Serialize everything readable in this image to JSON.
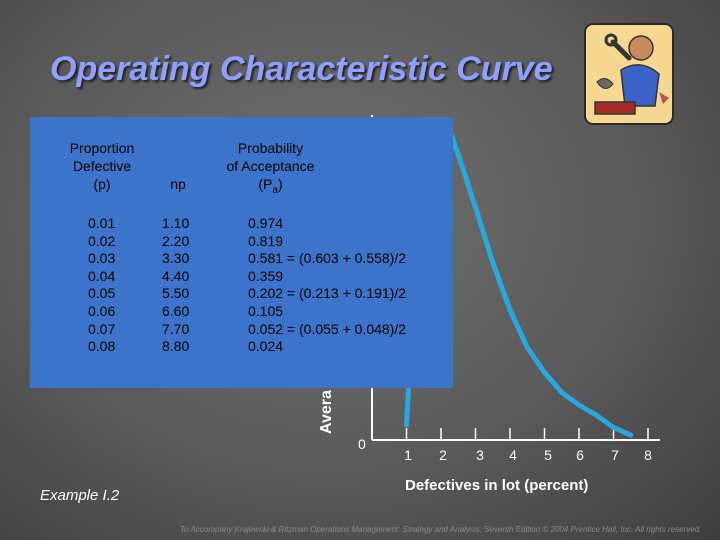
{
  "title": "Operating Characteristic Curve",
  "table": {
    "headers": {
      "p_line1": "Proportion",
      "p_line2": "Defective",
      "p_line3": "(p)",
      "np": "np",
      "pa_line1": "Probability",
      "pa_line2": "of Acceptance",
      "pa_line3_main": "(P",
      "pa_line3_sub": "a",
      "pa_line3_end": ")"
    },
    "rows": [
      {
        "p": "0.01",
        "np": "1.10",
        "pa": "0.974"
      },
      {
        "p": "0.02",
        "np": "2.20",
        "pa": "0.819"
      },
      {
        "p": "0.03",
        "np": "3.30",
        "pa": "0.581 = (0.603 + 0.558)/2"
      },
      {
        "p": "0.04",
        "np": "4.40",
        "pa": "0.359"
      },
      {
        "p": "0.05",
        "np": "5.50",
        "pa": "0.202 = (0.213 + 0.191)/2"
      },
      {
        "p": "0.06",
        "np": "6.60",
        "pa": "0.105"
      },
      {
        "p": "0.07",
        "np": "7.70",
        "pa": "0.052 = (0.055 + 0.048)/2"
      },
      {
        "p": "0.08",
        "np": "8.80",
        "pa": "0.024"
      }
    ]
  },
  "chart_data": {
    "type": "line",
    "ylabel": "Avera",
    "xlabel": "Defectives in lot (percent)",
    "x_ticks": [
      "0",
      "1",
      "2",
      "3",
      "4",
      "5",
      "6",
      "7",
      "8"
    ],
    "series": [
      {
        "x": [
          1.0,
          1.2,
          1.5,
          1.8,
          2.0,
          2.3,
          2.6,
          3.0,
          3.5,
          4.0,
          4.5,
          5.0,
          5.5,
          6.0,
          6.5,
          7.0,
          7.5
        ],
        "y": [
          0.06,
          0.55,
          1.02,
          1.22,
          1.26,
          1.22,
          1.1,
          0.93,
          0.71,
          0.52,
          0.37,
          0.27,
          0.19,
          0.14,
          0.1,
          0.05,
          0.02
        ]
      }
    ],
    "color": "#29a8e0"
  },
  "example": "Example I.2",
  "footer": "To Accompany Krajewski & Ritzman Operations Management: Strategy and Analysis, Seventh Edition © 2004 Prentice Hall, Inc. All rights reserved."
}
